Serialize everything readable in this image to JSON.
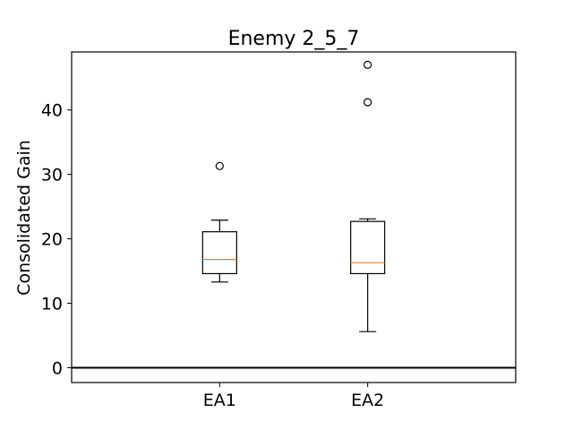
{
  "chart_data": {
    "type": "box",
    "title": "Enemy 2_5_7",
    "xlabel": "",
    "ylabel": "Consolidated Gain",
    "ylim": [
      -2.3,
      49
    ],
    "yticks": [
      0,
      10,
      20,
      30,
      40
    ],
    "grid": false,
    "reference_line": {
      "y": 0,
      "color": "#000000"
    },
    "categories": [
      "EA1",
      "EA2"
    ],
    "boxes": [
      {
        "name": "EA1",
        "whisker_low": 13.3,
        "q1": 14.6,
        "median": 16.8,
        "q3": 21.1,
        "whisker_high": 22.9,
        "outliers": [
          31.3
        ]
      },
      {
        "name": "EA2",
        "whisker_low": 5.6,
        "q1": 14.6,
        "median": 16.3,
        "q3": 22.7,
        "whisker_high": 23.1,
        "outliers": [
          41.2,
          47.0
        ]
      }
    ],
    "colors": {
      "box": "#000000",
      "median": "#ff7f0e",
      "outlier": "#000000"
    }
  }
}
